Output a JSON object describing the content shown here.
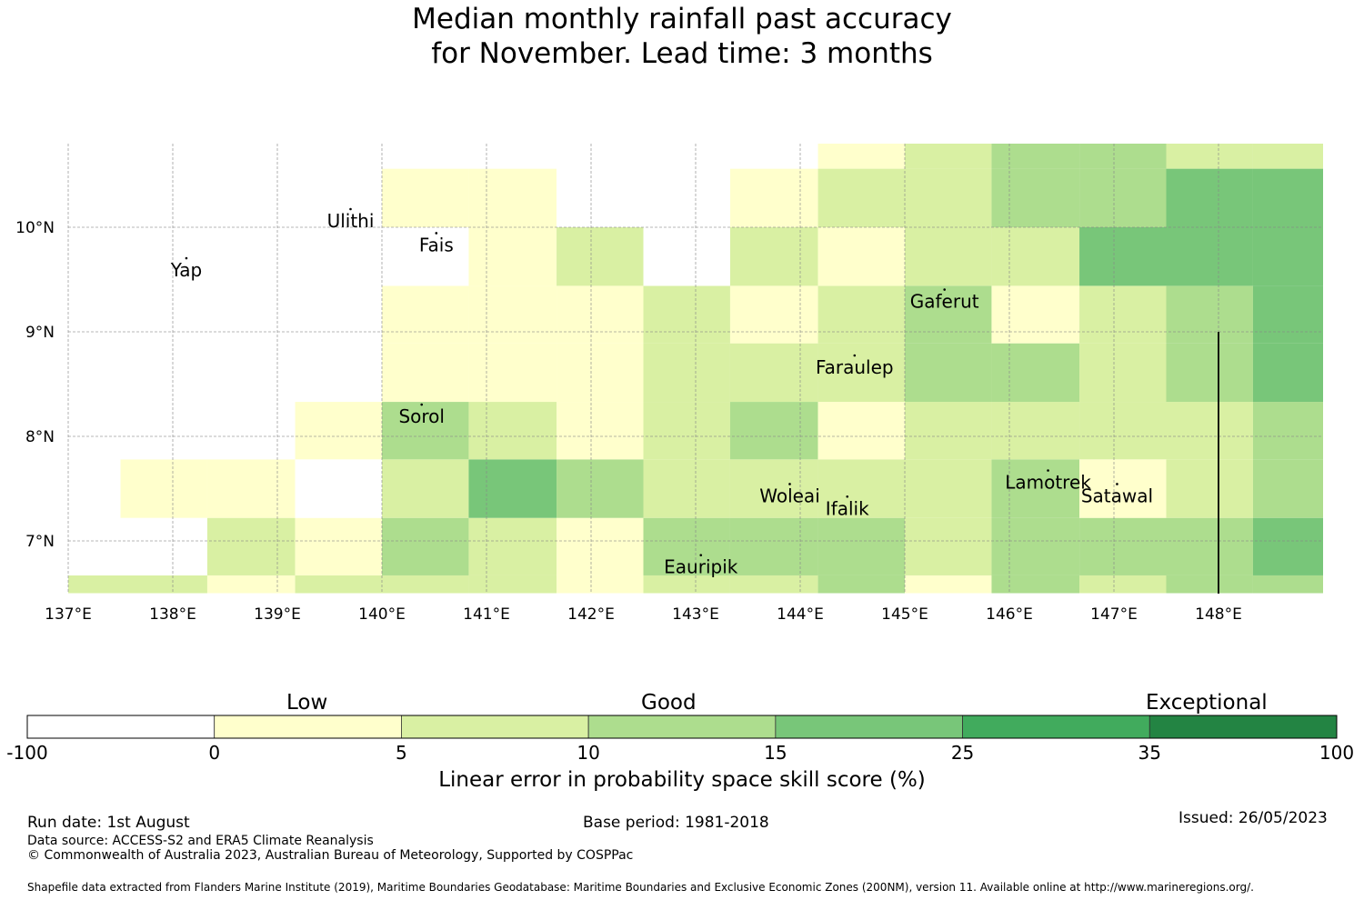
{
  "title": {
    "line1": "Median monthly rainfall past accuracy",
    "line2": "for November. Lead time: 3 months"
  },
  "map": {
    "lon_range": [
      137,
      149
    ],
    "lat_range": [
      6.5,
      10.8
    ],
    "lon_ticks": [
      "137°E",
      "138°E",
      "139°E",
      "140°E",
      "141°E",
      "142°E",
      "143°E",
      "144°E",
      "145°E",
      "146°E",
      "147°E",
      "148°E"
    ],
    "lat_ticks": [
      "10°N",
      "9°N",
      "8°N",
      "7°N"
    ],
    "grid": true,
    "colors": [
      "#ffffff",
      "#ffffcc",
      "#d9f0a3",
      "#addd8e",
      "#78c679",
      "#41ab5d",
      "#238443"
    ],
    "cell_lon_edges": [
      137.0,
      137.5,
      138.33,
      139.17,
      140.0,
      140.83,
      141.67,
      142.5,
      143.33,
      144.17,
      145.0,
      145.83,
      146.67,
      147.5,
      148.33,
      149.0
    ],
    "cell_lat_edges": [
      6.5,
      6.67,
      7.22,
      7.78,
      8.33,
      8.89,
      9.44,
      10.0,
      10.56,
      10.8
    ],
    "cells": [
      [
        2,
        2,
        1,
        2,
        2,
        2,
        1,
        2,
        2,
        3,
        1,
        3,
        2,
        3,
        3
      ],
      [
        0,
        0,
        2,
        1,
        3,
        2,
        1,
        3,
        3,
        3,
        2,
        3,
        3,
        3,
        4
      ],
      [
        0,
        1,
        1,
        0,
        2,
        4,
        3,
        2,
        2,
        2,
        2,
        3,
        1,
        2,
        3
      ],
      [
        0,
        0,
        0,
        1,
        3,
        2,
        1,
        2,
        3,
        1,
        2,
        2,
        2,
        2,
        3
      ],
      [
        0,
        0,
        0,
        0,
        1,
        1,
        1,
        2,
        2,
        2,
        3,
        3,
        2,
        3,
        4
      ],
      [
        0,
        0,
        0,
        0,
        1,
        1,
        1,
        2,
        1,
        2,
        3,
        1,
        2,
        3,
        4
      ],
      [
        0,
        0,
        0,
        0,
        0,
        1,
        2,
        0,
        2,
        1,
        2,
        2,
        4,
        4,
        4
      ],
      [
        0,
        0,
        0,
        0,
        1,
        1,
        0,
        0,
        1,
        2,
        2,
        3,
        3,
        4,
        4
      ],
      [
        0,
        0,
        0,
        0,
        0,
        0,
        0,
        0,
        0,
        1,
        2,
        3,
        3,
        2,
        2
      ]
    ],
    "meridian_line_lon": 148.0,
    "meridian_line_lat": [
      6.5,
      9.0
    ],
    "places": [
      {
        "name": "Ulithi",
        "lon": 139.7,
        "lat": 10.0
      },
      {
        "name": "Fais",
        "lon": 140.52,
        "lat": 9.77
      },
      {
        "name": "Yap",
        "lon": 138.13,
        "lat": 9.53
      },
      {
        "name": "Gaferut",
        "lon": 145.38,
        "lat": 9.23
      },
      {
        "name": "Faraulep",
        "lon": 144.52,
        "lat": 8.6
      },
      {
        "name": "Sorol",
        "lon": 140.38,
        "lat": 8.13
      },
      {
        "name": "Woleai",
        "lon": 143.9,
        "lat": 7.37
      },
      {
        "name": "Ifalik",
        "lon": 144.45,
        "lat": 7.25
      },
      {
        "name": "Lamotrek",
        "lon": 146.37,
        "lat": 7.5
      },
      {
        "name": "Satawal",
        "lon": 147.03,
        "lat": 7.37
      },
      {
        "name": "Eauripik",
        "lon": 143.05,
        "lat": 6.69
      }
    ]
  },
  "colorbar": {
    "categories": [
      "Low",
      "Good",
      "Exceptional"
    ],
    "ticks": [
      "-100",
      "0",
      "5",
      "10",
      "15",
      "25",
      "35",
      "100"
    ],
    "colors": [
      "#ffffff",
      "#ffffcc",
      "#d9f0a3",
      "#addd8e",
      "#78c679",
      "#41ab5d",
      "#238443"
    ],
    "label": "Linear error in probability space skill score (%)"
  },
  "footer": {
    "run_date": "Run date: 1st August",
    "base_period": "Base period: 1981-2018",
    "issued": "Issued: 26/05/2023",
    "data_source": "Data source: ACCESS-S2 and ERA5 Climate Reanalysis",
    "copyright": "© Commonwealth of Australia 2023, Australian Bureau of Meteorology, Supported by COSPPac",
    "shapefile": "Shapefile data extracted from Flanders Marine Institute (2019), Maritime Boundaries Geodatabase: Maritime Boundaries and Exclusive Economic Zones (200NM), version 11. Available online at http://www.marineregions.org/."
  }
}
